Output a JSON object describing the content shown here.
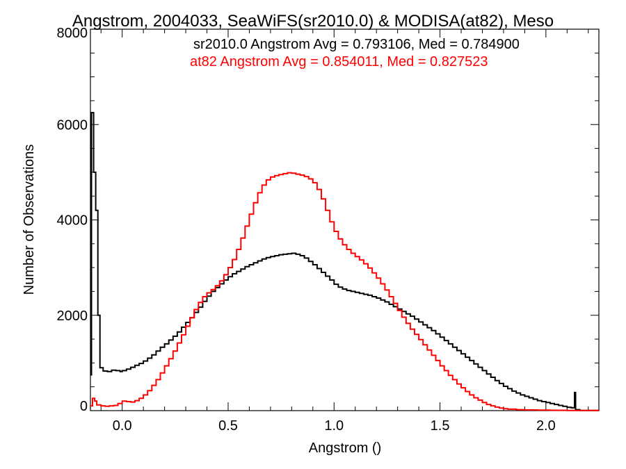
{
  "chart_data": {
    "type": "line",
    "title": "Angstrom, 2004033, SeaWiFS(sr2010.0) & MODISA(at82), Meso",
    "xlabel": "Angstrom ()",
    "ylabel": "Number of Observations",
    "xlim": [
      -0.15,
      2.25
    ],
    "ylim": [
      0,
      8000
    ],
    "x_ticks": [
      0.0,
      0.5,
      1.0,
      1.5,
      2.0
    ],
    "x_tick_labels": [
      "0.0",
      "0.5",
      "1.0",
      "1.5",
      "2.0"
    ],
    "y_ticks": [
      0,
      2000,
      4000,
      6000,
      8000
    ],
    "y_tick_labels": [
      "0",
      "2000",
      "4000",
      "6000",
      "8000"
    ],
    "grid": false,
    "series": [
      {
        "name": "sr2010.0",
        "color": "#000000",
        "annotation": "sr2010.0 Angstrom Avg = 0.793106, Med = 0.784900",
        "points": [
          [
            -0.15,
            750
          ],
          [
            -0.145,
            6250
          ],
          [
            -0.135,
            5000
          ],
          [
            -0.125,
            4200
          ],
          [
            -0.115,
            2000
          ],
          [
            -0.105,
            900
          ],
          [
            -0.09,
            830
          ],
          [
            -0.07,
            820
          ],
          [
            -0.05,
            850
          ],
          [
            -0.03,
            840
          ],
          [
            -0.01,
            820
          ],
          [
            0.0,
            840
          ],
          [
            0.02,
            870
          ],
          [
            0.04,
            910
          ],
          [
            0.06,
            950
          ],
          [
            0.08,
            990
          ],
          [
            0.1,
            1040
          ],
          [
            0.12,
            1100
          ],
          [
            0.14,
            1170
          ],
          [
            0.16,
            1250
          ],
          [
            0.18,
            1330
          ],
          [
            0.2,
            1400
          ],
          [
            0.22,
            1480
          ],
          [
            0.24,
            1560
          ],
          [
            0.26,
            1650
          ],
          [
            0.28,
            1750
          ],
          [
            0.3,
            1850
          ],
          [
            0.32,
            1950
          ],
          [
            0.34,
            2060
          ],
          [
            0.36,
            2170
          ],
          [
            0.38,
            2290
          ],
          [
            0.4,
            2400
          ],
          [
            0.42,
            2500
          ],
          [
            0.44,
            2580
          ],
          [
            0.46,
            2660
          ],
          [
            0.48,
            2740
          ],
          [
            0.5,
            2810
          ],
          [
            0.52,
            2870
          ],
          [
            0.54,
            2920
          ],
          [
            0.56,
            2970
          ],
          [
            0.58,
            3020
          ],
          [
            0.6,
            3060
          ],
          [
            0.62,
            3100
          ],
          [
            0.64,
            3140
          ],
          [
            0.66,
            3180
          ],
          [
            0.68,
            3210
          ],
          [
            0.7,
            3230
          ],
          [
            0.72,
            3250
          ],
          [
            0.74,
            3270
          ],
          [
            0.76,
            3280
          ],
          [
            0.78,
            3290
          ],
          [
            0.8,
            3300
          ],
          [
            0.82,
            3280
          ],
          [
            0.84,
            3250
          ],
          [
            0.86,
            3200
          ],
          [
            0.88,
            3130
          ],
          [
            0.9,
            3060
          ],
          [
            0.92,
            2980
          ],
          [
            0.94,
            2900
          ],
          [
            0.96,
            2820
          ],
          [
            0.98,
            2740
          ],
          [
            1.0,
            2650
          ],
          [
            1.02,
            2590
          ],
          [
            1.04,
            2550
          ],
          [
            1.06,
            2520
          ],
          [
            1.08,
            2500
          ],
          [
            1.1,
            2480
          ],
          [
            1.12,
            2460
          ],
          [
            1.14,
            2440
          ],
          [
            1.16,
            2420
          ],
          [
            1.18,
            2390
          ],
          [
            1.2,
            2360
          ],
          [
            1.22,
            2320
          ],
          [
            1.24,
            2280
          ],
          [
            1.26,
            2230
          ],
          [
            1.28,
            2180
          ],
          [
            1.3,
            2130
          ],
          [
            1.32,
            2080
          ],
          [
            1.34,
            2030
          ],
          [
            1.36,
            1980
          ],
          [
            1.38,
            1920
          ],
          [
            1.4,
            1860
          ],
          [
            1.42,
            1800
          ],
          [
            1.44,
            1740
          ],
          [
            1.46,
            1680
          ],
          [
            1.48,
            1610
          ],
          [
            1.5,
            1540
          ],
          [
            1.52,
            1470
          ],
          [
            1.54,
            1400
          ],
          [
            1.56,
            1330
          ],
          [
            1.58,
            1260
          ],
          [
            1.6,
            1190
          ],
          [
            1.62,
            1120
          ],
          [
            1.64,
            1050
          ],
          [
            1.66,
            980
          ],
          [
            1.68,
            910
          ],
          [
            1.7,
            840
          ],
          [
            1.72,
            770
          ],
          [
            1.74,
            700
          ],
          [
            1.76,
            630
          ],
          [
            1.78,
            570
          ],
          [
            1.8,
            510
          ],
          [
            1.82,
            460
          ],
          [
            1.84,
            410
          ],
          [
            1.86,
            370
          ],
          [
            1.88,
            330
          ],
          [
            1.9,
            300
          ],
          [
            1.92,
            270
          ],
          [
            1.94,
            240
          ],
          [
            1.96,
            210
          ],
          [
            1.98,
            190
          ],
          [
            2.0,
            170
          ],
          [
            2.02,
            150
          ],
          [
            2.04,
            130
          ],
          [
            2.06,
            110
          ],
          [
            2.08,
            90
          ],
          [
            2.1,
            70
          ],
          [
            2.12,
            60
          ],
          [
            2.135,
            380
          ],
          [
            2.14,
            20
          ],
          [
            2.16,
            5
          ],
          [
            2.25,
            0
          ]
        ]
      },
      {
        "name": "at82",
        "color": "#ff0000",
        "annotation": "at82 Angstrom Avg = 0.854011, Med = 0.827523",
        "points": [
          [
            -0.15,
            100
          ],
          [
            -0.14,
            260
          ],
          [
            -0.13,
            200
          ],
          [
            -0.12,
            120
          ],
          [
            -0.1,
            100
          ],
          [
            -0.08,
            90
          ],
          [
            -0.06,
            100
          ],
          [
            -0.04,
            110
          ],
          [
            -0.02,
            150
          ],
          [
            0.0,
            200
          ],
          [
            0.02,
            190
          ],
          [
            0.04,
            180
          ],
          [
            0.06,
            210
          ],
          [
            0.08,
            260
          ],
          [
            0.1,
            330
          ],
          [
            0.12,
            420
          ],
          [
            0.14,
            530
          ],
          [
            0.16,
            650
          ],
          [
            0.18,
            790
          ],
          [
            0.2,
            940
          ],
          [
            0.22,
            1090
          ],
          [
            0.24,
            1250
          ],
          [
            0.26,
            1420
          ],
          [
            0.28,
            1590
          ],
          [
            0.3,
            1770
          ],
          [
            0.32,
            1950
          ],
          [
            0.34,
            2120
          ],
          [
            0.36,
            2270
          ],
          [
            0.38,
            2390
          ],
          [
            0.4,
            2470
          ],
          [
            0.42,
            2540
          ],
          [
            0.44,
            2620
          ],
          [
            0.46,
            2720
          ],
          [
            0.48,
            2850
          ],
          [
            0.5,
            3000
          ],
          [
            0.52,
            3170
          ],
          [
            0.54,
            3380
          ],
          [
            0.56,
            3620
          ],
          [
            0.58,
            3870
          ],
          [
            0.6,
            4120
          ],
          [
            0.62,
            4360
          ],
          [
            0.64,
            4570
          ],
          [
            0.66,
            4730
          ],
          [
            0.68,
            4840
          ],
          [
            0.7,
            4900
          ],
          [
            0.72,
            4930
          ],
          [
            0.74,
            4950
          ],
          [
            0.76,
            4970
          ],
          [
            0.78,
            4990
          ],
          [
            0.8,
            4980
          ],
          [
            0.82,
            4960
          ],
          [
            0.84,
            4940
          ],
          [
            0.86,
            4910
          ],
          [
            0.88,
            4860
          ],
          [
            0.9,
            4780
          ],
          [
            0.92,
            4640
          ],
          [
            0.94,
            4440
          ],
          [
            0.96,
            4200
          ],
          [
            0.98,
            3960
          ],
          [
            1.0,
            3760
          ],
          [
            1.02,
            3600
          ],
          [
            1.04,
            3480
          ],
          [
            1.06,
            3380
          ],
          [
            1.08,
            3300
          ],
          [
            1.1,
            3230
          ],
          [
            1.12,
            3160
          ],
          [
            1.14,
            3080
          ],
          [
            1.16,
            2990
          ],
          [
            1.18,
            2890
          ],
          [
            1.2,
            2780
          ],
          [
            1.22,
            2660
          ],
          [
            1.24,
            2530
          ],
          [
            1.26,
            2390
          ],
          [
            1.28,
            2250
          ],
          [
            1.3,
            2100
          ],
          [
            1.32,
            1960
          ],
          [
            1.34,
            1830
          ],
          [
            1.36,
            1710
          ],
          [
            1.38,
            1600
          ],
          [
            1.4,
            1490
          ],
          [
            1.42,
            1380
          ],
          [
            1.44,
            1270
          ],
          [
            1.46,
            1160
          ],
          [
            1.48,
            1050
          ],
          [
            1.5,
            940
          ],
          [
            1.52,
            840
          ],
          [
            1.54,
            740
          ],
          [
            1.56,
            650
          ],
          [
            1.58,
            560
          ],
          [
            1.6,
            480
          ],
          [
            1.62,
            400
          ],
          [
            1.64,
            330
          ],
          [
            1.66,
            270
          ],
          [
            1.68,
            220
          ],
          [
            1.7,
            170
          ],
          [
            1.72,
            130
          ],
          [
            1.74,
            100
          ],
          [
            1.76,
            75
          ],
          [
            1.78,
            55
          ],
          [
            1.8,
            40
          ],
          [
            1.82,
            30
          ],
          [
            1.86,
            20
          ],
          [
            1.9,
            15
          ],
          [
            1.96,
            10
          ],
          [
            2.02,
            8
          ],
          [
            2.1,
            5
          ],
          [
            2.25,
            0
          ]
        ]
      }
    ]
  }
}
